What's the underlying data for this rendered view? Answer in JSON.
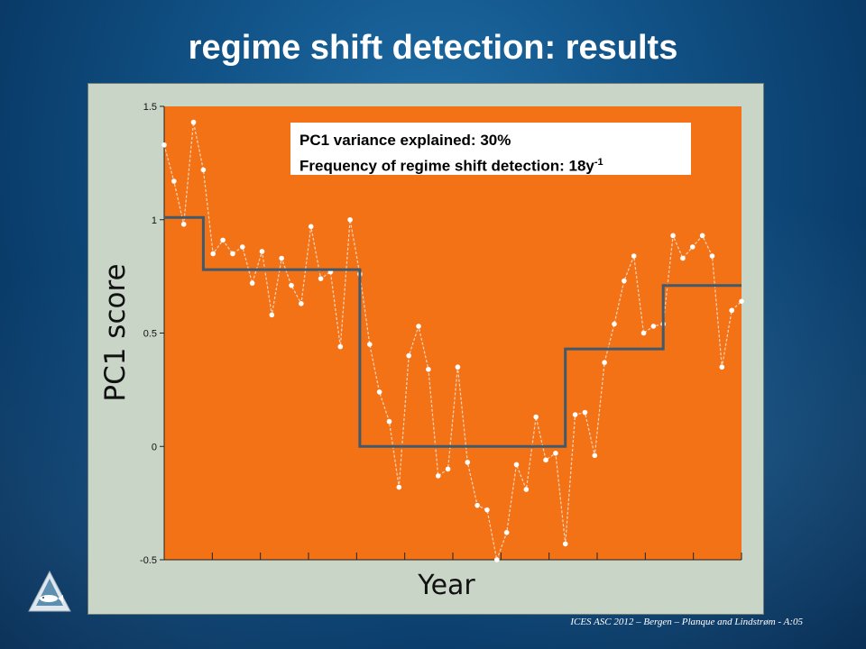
{
  "slide": {
    "title": "regime shift detection: results",
    "footer": "ICES ASC 2012 – Bergen – Planque and Lindstrøm - A:05"
  },
  "info_box": {
    "line1": "PC1 variance explained: 30%",
    "line2_prefix": "Frequency of regime shift detection: 18y",
    "line2_sup": "-1"
  },
  "chart_data": {
    "type": "line",
    "title": "",
    "xlabel": "Year",
    "ylabel": "PC1 score",
    "ylim": [
      -0.5,
      1.5
    ],
    "yticks": [
      "-0.5",
      "0",
      "0.5",
      "1",
      "1.5"
    ],
    "grid": false,
    "x_tick_count": 12,
    "series": [
      {
        "kind": "observations",
        "values": [
          1.33,
          1.17,
          0.98,
          1.43,
          1.22,
          0.85,
          0.91,
          0.85,
          0.88,
          0.72,
          0.86,
          0.58,
          0.83,
          0.71,
          0.63,
          0.97,
          0.74,
          0.77,
          0.44,
          1.0,
          0.76,
          0.45,
          0.24,
          0.11,
          -0.18,
          0.4,
          0.53,
          0.34,
          -0.13,
          -0.1,
          0.35,
          -0.07,
          -0.26,
          -0.28,
          -0.5,
          -0.38,
          -0.08,
          -0.19,
          0.13,
          -0.06,
          -0.03,
          -0.43,
          0.14,
          0.15,
          -0.04,
          0.37,
          0.54,
          0.73,
          0.84,
          0.5,
          0.53,
          0.54,
          0.93,
          0.83,
          0.88,
          0.93,
          0.84,
          0.35,
          0.6,
          0.64
        ]
      },
      {
        "kind": "regime-means",
        "segments": [
          {
            "start": 0,
            "end": 4,
            "value": 1.01
          },
          {
            "start": 4,
            "end": 20,
            "value": 0.78
          },
          {
            "start": 20,
            "end": 41,
            "value": 0.0
          },
          {
            "start": 41,
            "end": 51,
            "value": 0.43
          },
          {
            "start": 51,
            "end": 59,
            "value": 0.71
          }
        ]
      }
    ],
    "colors": {
      "plot_background": "#f47216",
      "observation_line": "#f3d6bd",
      "observation_point": "#ffffff",
      "regime_line": "#3e5a6c"
    }
  }
}
